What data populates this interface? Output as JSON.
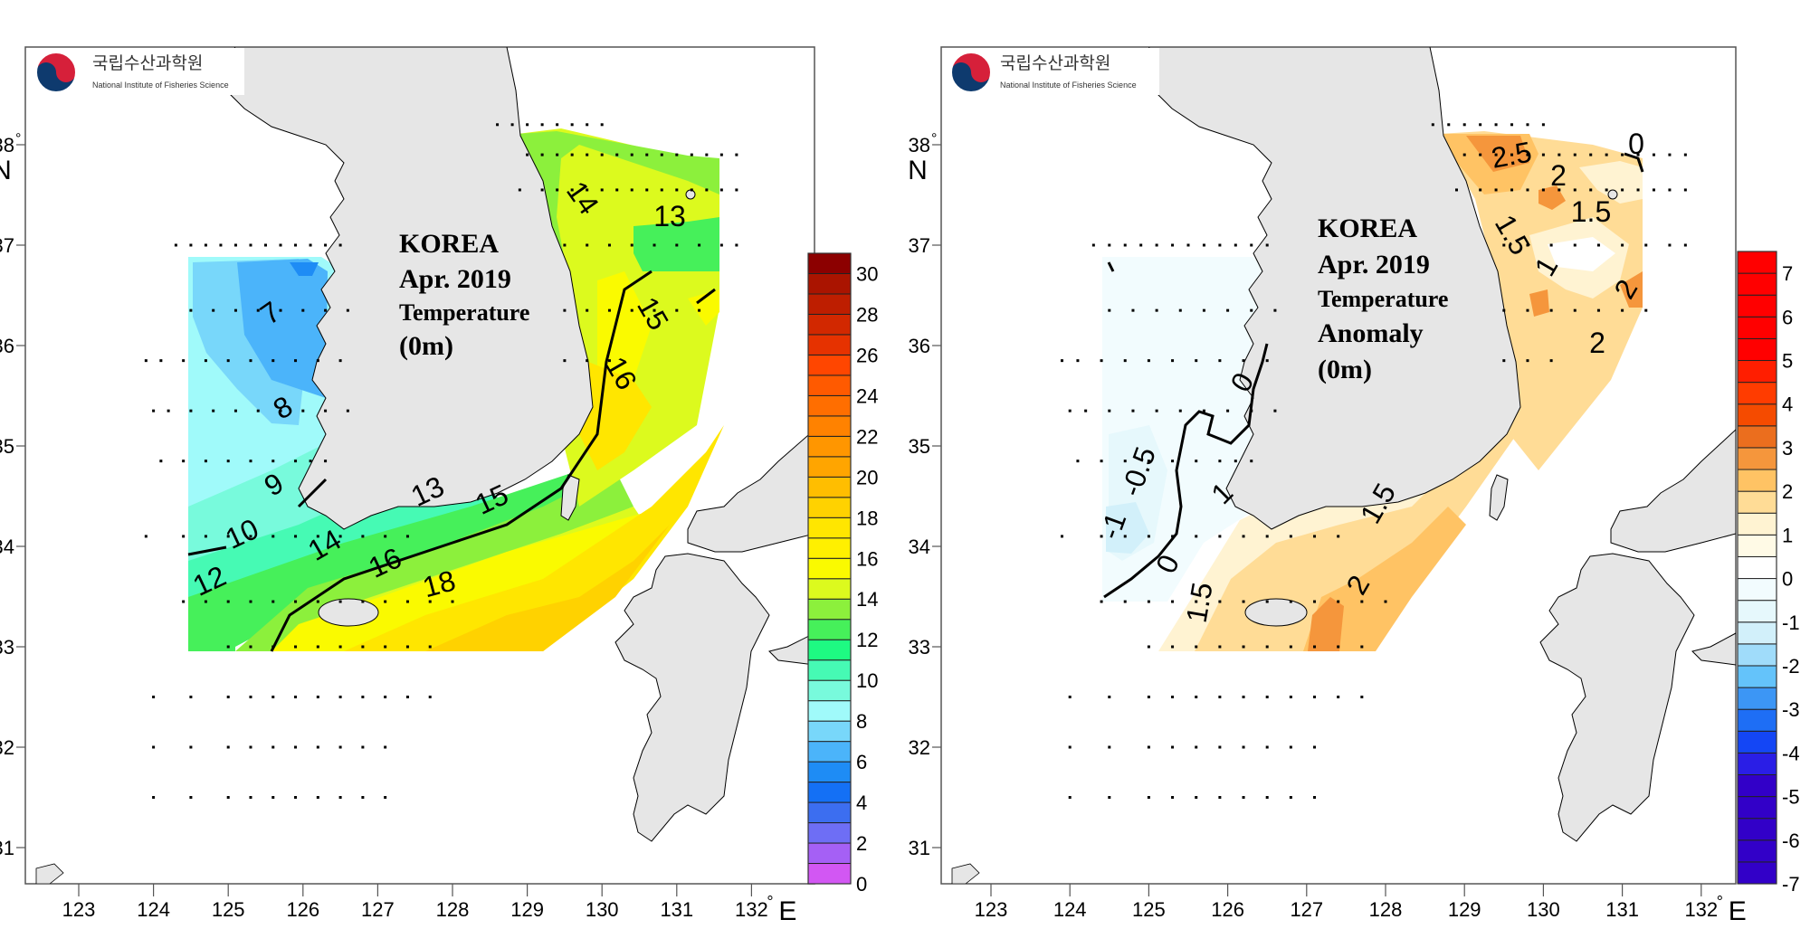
{
  "institute": {
    "name_ko": "국립수산과학원",
    "name_en": "National Institute of Fisheries Science"
  },
  "panels": [
    {
      "id": "temperature",
      "title_lines": [
        "KOREA",
        "Apr. 2019",
        "Temperature",
        "(0m)"
      ],
      "colorbar": {
        "min": 0,
        "max": 31,
        "step": 1,
        "tick_labels": [
          "0",
          "2",
          "4",
          "6",
          "8",
          "10",
          "12",
          "14",
          "16",
          "18",
          "20",
          "22",
          "24",
          "26",
          "28",
          "30"
        ],
        "colors": [
          "#d257f3",
          "#a560f5",
          "#6e6ef5",
          "#3c6ef0",
          "#1470f5",
          "#1e8cf5",
          "#4bb4fa",
          "#78d7fa",
          "#a0fafa",
          "#78fadc",
          "#46fab4",
          "#1efa82",
          "#46f05a",
          "#8cf03c",
          "#dcfa1e",
          "#fafa00",
          "#fff000",
          "#ffe600",
          "#ffd200",
          "#ffbe00",
          "#ffa500",
          "#ff9600",
          "#ff8200",
          "#ff6e00",
          "#ff5a00",
          "#ff4600",
          "#e63200",
          "#d22800",
          "#be1e00",
          "#aa1400",
          "#8c0000"
        ]
      },
      "contour_labels": [
        "7",
        "8",
        "9",
        "10",
        "12",
        "13",
        "13",
        "14",
        "14",
        "15",
        "15",
        "16",
        "16",
        "18"
      ],
      "colors": {
        "land": "#e6e6e6",
        "coast": "#000000"
      }
    },
    {
      "id": "anomaly",
      "title_lines": [
        "KOREA",
        "Apr. 2019",
        "Temperature",
        "Anomaly",
        "(0m)"
      ],
      "colorbar": {
        "min": -7,
        "max": 7.5,
        "step": 0.5,
        "tick_labels": [
          "-7",
          "-6",
          "-5",
          "-4",
          "-3",
          "-2",
          "-1",
          "0",
          "1",
          "2",
          "3",
          "4",
          "5",
          "6",
          "7"
        ],
        "colors": [
          "#3200c8",
          "#3200c8",
          "#3200c8",
          "#3200c8",
          "#3200c8",
          "#2a1ee6",
          "#1446f5",
          "#1e6ef5",
          "#3c96f5",
          "#64c3fa",
          "#a0dcfa",
          "#d2f0fa",
          "#e6f8fc",
          "#f2fcfe",
          "#ffffff",
          "#fffae6",
          "#fff3d2",
          "#ffdc96",
          "#ffc364",
          "#f5963c",
          "#eb6e1e",
          "#f54b00",
          "#ff3c00",
          "#ff1e00",
          "#ff0000",
          "#ff0000",
          "#ff0000",
          "#ff0000",
          "#ff0000"
        ]
      },
      "contour_labels": [
        "-1",
        "-0.5",
        "0",
        "0",
        "0",
        "1",
        "1",
        "1.5",
        "1.5",
        "1.5",
        "1.5",
        "2",
        "2",
        "2",
        "2",
        "2.5"
      ],
      "colors": {
        "land": "#e6e6e6",
        "coast": "#000000"
      }
    }
  ],
  "axes": {
    "x_ticks": [
      "123",
      "124",
      "125",
      "126",
      "127",
      "128",
      "129",
      "130",
      "131",
      "132"
    ],
    "x_unit": "E",
    "y_ticks": [
      "31",
      "32",
      "33",
      "34",
      "35",
      "36",
      "37",
      "38"
    ],
    "y_unit": "N",
    "degree_symbol": "°"
  }
}
